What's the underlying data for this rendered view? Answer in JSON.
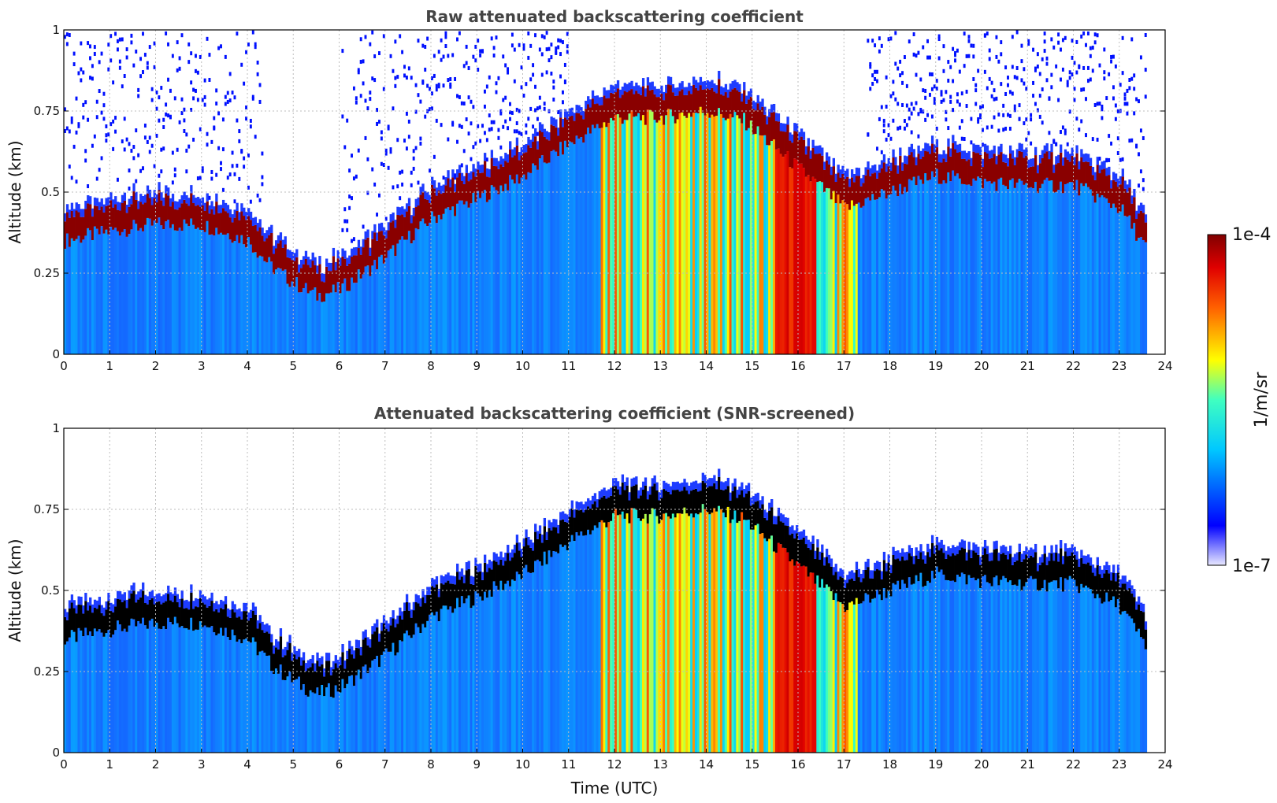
{
  "chart_data": [
    {
      "type": "heatmap",
      "title": "Raw attenuated backscattering coefficient",
      "xlabel": "",
      "ylabel": "Altitude (km)",
      "xlim": [
        0,
        24
      ],
      "ylim": [
        0,
        1
      ],
      "xticks": [
        "0",
        "1",
        "2",
        "3",
        "4",
        "5",
        "6",
        "7",
        "8",
        "9",
        "10",
        "11",
        "12",
        "13",
        "14",
        "15",
        "16",
        "17",
        "18",
        "19",
        "20",
        "21",
        "22",
        "23",
        "24"
      ],
      "yticks": [
        {
          "value": 0,
          "label": "0"
        },
        {
          "value": 0.25,
          "label": "0.25"
        },
        {
          "value": 0.5,
          "label": "0.5"
        },
        {
          "value": 0.75,
          "label": "0.75"
        },
        {
          "value": 1,
          "label": "1"
        }
      ],
      "grid": true,
      "screened": false,
      "data_end_hour": 23.6,
      "boundary_layer_top_km": [
        {
          "t": 0,
          "z": 0.35
        },
        {
          "t": 1,
          "z": 0.38
        },
        {
          "t": 2,
          "z": 0.4
        },
        {
          "t": 3,
          "z": 0.4
        },
        {
          "t": 4,
          "z": 0.35
        },
        {
          "t": 4.5,
          "z": 0.27
        },
        {
          "t": 5,
          "z": 0.22
        },
        {
          "t": 5.5,
          "z": 0.18
        },
        {
          "t": 6,
          "z": 0.2
        },
        {
          "t": 7,
          "z": 0.3
        },
        {
          "t": 8,
          "z": 0.42
        },
        {
          "t": 9,
          "z": 0.48
        },
        {
          "t": 10,
          "z": 0.55
        },
        {
          "t": 11,
          "z": 0.65
        },
        {
          "t": 12,
          "z": 0.73
        },
        {
          "t": 13,
          "z": 0.73
        },
        {
          "t": 14,
          "z": 0.75
        },
        {
          "t": 14.8,
          "z": 0.72
        },
        {
          "t": 17,
          "z": 0.45
        },
        {
          "t": 18,
          "z": 0.5
        },
        {
          "t": 19,
          "z": 0.55
        },
        {
          "t": 20,
          "z": 0.53
        },
        {
          "t": 21,
          "z": 0.52
        },
        {
          "t": 22,
          "z": 0.52
        },
        {
          "t": 23,
          "z": 0.45
        },
        {
          "t": 23.6,
          "z": 0.32
        }
      ]
    },
    {
      "type": "heatmap",
      "title": "Attenuated backscattering coefficient (SNR-screened)",
      "xlabel": "Time (UTC)",
      "ylabel": "Altitude (km)",
      "xlim": [
        0,
        24
      ],
      "ylim": [
        0,
        1
      ],
      "xticks": [
        "0",
        "1",
        "2",
        "3",
        "4",
        "5",
        "6",
        "7",
        "8",
        "9",
        "10",
        "11",
        "12",
        "13",
        "14",
        "15",
        "16",
        "17",
        "18",
        "19",
        "20",
        "21",
        "22",
        "23",
        "24"
      ],
      "yticks": [
        {
          "value": 0,
          "label": "0"
        },
        {
          "value": 0.25,
          "label": "0.25"
        },
        {
          "value": 0.5,
          "label": "0.5"
        },
        {
          "value": 0.75,
          "label": "0.75"
        },
        {
          "value": 1,
          "label": "1"
        }
      ],
      "grid": true,
      "screened": true,
      "data_end_hour": 23.6
    }
  ],
  "colorbar": {
    "label": "1/m/sr",
    "max_label": "1e-4",
    "min_label": "1e-7",
    "colormap": "jet"
  }
}
